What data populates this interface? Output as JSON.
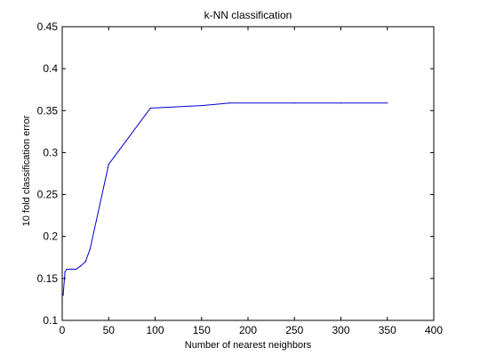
{
  "chart_data": {
    "type": "line",
    "title": "k-NN classification",
    "xlabel": "Number of nearest neighbors",
    "ylabel": "10 fold classification error",
    "xlim": [
      0,
      400
    ],
    "ylim": [
      0.1,
      0.45
    ],
    "xticks": [
      0,
      50,
      100,
      150,
      200,
      250,
      300,
      350,
      400
    ],
    "yticks": [
      0.1,
      0.15,
      0.2,
      0.25,
      0.3,
      0.35,
      0.4,
      0.45
    ],
    "ytick_labels": [
      "0.1",
      "0.15",
      "0.2",
      "0.25",
      "0.3",
      "0.35",
      "0.4",
      "0.45"
    ],
    "grid": false,
    "colors": {
      "line": "#0000cc",
      "axes": "#000000",
      "background": "#ffffff"
    },
    "series": [
      {
        "x": [
          1,
          3,
          5,
          10,
          15,
          20,
          25,
          30,
          50,
          95,
          150,
          180,
          250,
          300,
          350
        ],
        "y": [
          0.13,
          0.158,
          0.161,
          0.161,
          0.161,
          0.165,
          0.17,
          0.185,
          0.286,
          0.353,
          0.356,
          0.359,
          0.359,
          0.359,
          0.359
        ]
      }
    ]
  }
}
